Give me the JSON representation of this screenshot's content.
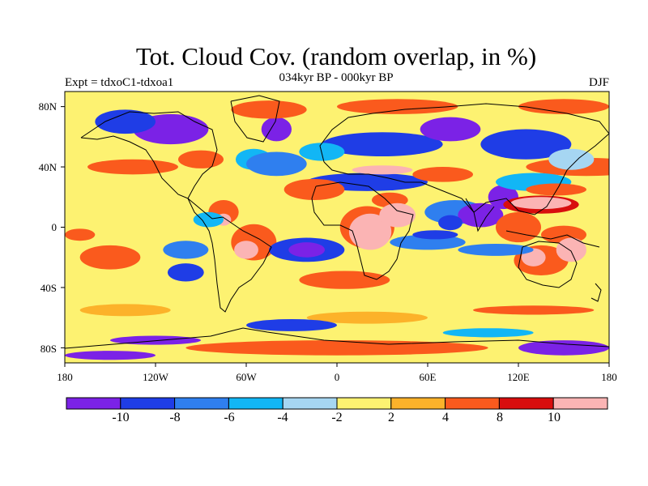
{
  "header": {
    "title": "Tot. Cloud Cov. (random overlap, in %)",
    "subtitle": "034kyr BP - 000kyr BP",
    "experiment": "Expt = tdxoC1-tdxoa1",
    "season": "DJF"
  },
  "axes": {
    "lat_labels": [
      "80N",
      "40N",
      "0",
      "40S",
      "80S"
    ],
    "lat_values": [
      80,
      40,
      0,
      -40,
      -80
    ],
    "lon_labels": [
      "180",
      "120W",
      "60W",
      "0",
      "60E",
      "120E",
      "180"
    ],
    "lon_values": [
      -180,
      -120,
      -60,
      0,
      60,
      120,
      180
    ]
  },
  "colorbar": {
    "labels": [
      "-10",
      "-8",
      "-6",
      "-4",
      "-2",
      "2",
      "4",
      "8",
      "10"
    ],
    "colors": [
      "#7b22e6",
      "#1f3de6",
      "#2f7fef",
      "#12b6f5",
      "#a6d6f2",
      "#fdf271",
      "#fcb22a",
      "#fa5a1d",
      "#d80e0e",
      "#fbb4b4"
    ]
  },
  "chart_data": {
    "type": "heatmap",
    "title": "Tot. Cloud Cov. (random overlap, in %)",
    "subtitle": "034kyr BP - 000kyr BP",
    "xlabel": "",
    "ylabel": "",
    "xlim": [
      -180,
      180
    ],
    "ylim": [
      -90,
      90
    ],
    "levels": [
      -10,
      -8,
      -6,
      -4,
      -2,
      2,
      4,
      8,
      10
    ],
    "background_class": 5,
    "regions": [
      {
        "lon": 165,
        "lat": 40,
        "rx": 40,
        "ry": 6,
        "c": 7
      },
      {
        "lon": -135,
        "lat": 40,
        "rx": 30,
        "ry": 5,
        "c": 7
      },
      {
        "lon": 125,
        "lat": 55,
        "rx": 30,
        "ry": 10,
        "c": 1
      },
      {
        "lon": 30,
        "lat": 55,
        "rx": 40,
        "ry": 8,
        "c": 1
      },
      {
        "lon": -110,
        "lat": 65,
        "rx": 25,
        "ry": 10,
        "c": 0
      },
      {
        "lon": -40,
        "lat": 65,
        "rx": 10,
        "ry": 8,
        "c": 0
      },
      {
        "lon": 75,
        "lat": 65,
        "rx": 20,
        "ry": 8,
        "c": 0
      },
      {
        "lon": 110,
        "lat": 20,
        "rx": 10,
        "ry": 8,
        "c": 0
      },
      {
        "lon": -140,
        "lat": 70,
        "rx": 20,
        "ry": 8,
        "c": 1
      },
      {
        "lon": -45,
        "lat": 78,
        "rx": 25,
        "ry": 6,
        "c": 7
      },
      {
        "lon": 40,
        "lat": 80,
        "rx": 40,
        "ry": 5,
        "c": 7
      },
      {
        "lon": 150,
        "lat": 80,
        "rx": 30,
        "ry": 5,
        "c": 7
      },
      {
        "lon": -90,
        "lat": 45,
        "rx": 15,
        "ry": 6,
        "c": 7
      },
      {
        "lon": -55,
        "lat": 45,
        "rx": 12,
        "ry": 7,
        "c": 3
      },
      {
        "lon": -10,
        "lat": 50,
        "rx": 15,
        "ry": 6,
        "c": 3
      },
      {
        "lon": -40,
        "lat": 42,
        "rx": 20,
        "ry": 8,
        "c": 2
      },
      {
        "lon": 20,
        "lat": 30,
        "rx": 40,
        "ry": 6,
        "c": 1
      },
      {
        "lon": 30,
        "lat": 38,
        "rx": 20,
        "ry": 3,
        "c": 9
      },
      {
        "lon": 70,
        "lat": 35,
        "rx": 20,
        "ry": 5,
        "c": 7
      },
      {
        "lon": -15,
        "lat": 25,
        "rx": 20,
        "ry": 7,
        "c": 7
      },
      {
        "lon": 130,
        "lat": 30,
        "rx": 25,
        "ry": 6,
        "c": 3
      },
      {
        "lon": 155,
        "lat": 45,
        "rx": 15,
        "ry": 7,
        "c": 4
      },
      {
        "lon": 145,
        "lat": 25,
        "rx": 20,
        "ry": 4,
        "c": 7
      },
      {
        "lon": 135,
        "lat": 15,
        "rx": 25,
        "ry": 6,
        "c": 8
      },
      {
        "lon": 135,
        "lat": 16,
        "rx": 20,
        "ry": 4,
        "c": 9
      },
      {
        "lon": 35,
        "lat": 18,
        "rx": 12,
        "ry": 5,
        "c": 7
      },
      {
        "lon": 20,
        "lat": 0,
        "rx": 18,
        "ry": 14,
        "c": 7
      },
      {
        "lon": 22,
        "lat": -3,
        "rx": 14,
        "ry": 12,
        "c": 9
      },
      {
        "lon": 40,
        "lat": 8,
        "rx": 12,
        "ry": 8,
        "c": 9
      },
      {
        "lon": 78,
        "lat": 10,
        "rx": 20,
        "ry": 8,
        "c": 2
      },
      {
        "lon": 95,
        "lat": 8,
        "rx": 15,
        "ry": 8,
        "c": 0
      },
      {
        "lon": 75,
        "lat": 3,
        "rx": 8,
        "ry": 5,
        "c": 1
      },
      {
        "lon": 120,
        "lat": 0,
        "rx": 15,
        "ry": 10,
        "c": 7
      },
      {
        "lon": 150,
        "lat": -5,
        "rx": 15,
        "ry": 6,
        "c": 7
      },
      {
        "lon": 135,
        "lat": -22,
        "rx": 18,
        "ry": 10,
        "c": 7
      },
      {
        "lon": 130,
        "lat": -20,
        "rx": 8,
        "ry": 6,
        "c": 9
      },
      {
        "lon": 155,
        "lat": -15,
        "rx": 10,
        "ry": 8,
        "c": 9
      },
      {
        "lon": 105,
        "lat": -15,
        "rx": 25,
        "ry": 4,
        "c": 2
      },
      {
        "lon": -75,
        "lat": 10,
        "rx": 10,
        "ry": 8,
        "c": 7
      },
      {
        "lon": -75,
        "lat": 5,
        "rx": 5,
        "ry": 4,
        "c": 9
      },
      {
        "lon": -55,
        "lat": -10,
        "rx": 15,
        "ry": 12,
        "c": 7
      },
      {
        "lon": -60,
        "lat": -15,
        "rx": 8,
        "ry": 6,
        "c": 9
      },
      {
        "lon": -85,
        "lat": 5,
        "rx": 10,
        "ry": 5,
        "c": 3
      },
      {
        "lon": -100,
        "lat": -15,
        "rx": 15,
        "ry": 6,
        "c": 2
      },
      {
        "lon": -100,
        "lat": -30,
        "rx": 12,
        "ry": 6,
        "c": 1
      },
      {
        "lon": -20,
        "lat": -15,
        "rx": 25,
        "ry": 8,
        "c": 1
      },
      {
        "lon": -20,
        "lat": -15,
        "rx": 12,
        "ry": 5,
        "c": 0
      },
      {
        "lon": 60,
        "lat": -10,
        "rx": 25,
        "ry": 5,
        "c": 2
      },
      {
        "lon": 65,
        "lat": -5,
        "rx": 15,
        "ry": 3,
        "c": 1
      },
      {
        "lon": -150,
        "lat": -20,
        "rx": 20,
        "ry": 8,
        "c": 7
      },
      {
        "lon": -170,
        "lat": -5,
        "rx": 10,
        "ry": 4,
        "c": 7
      },
      {
        "lon": 5,
        "lat": -35,
        "rx": 30,
        "ry": 6,
        "c": 7
      },
      {
        "lon": -140,
        "lat": -55,
        "rx": 30,
        "ry": 4,
        "c": 6
      },
      {
        "lon": 20,
        "lat": -60,
        "rx": 40,
        "ry": 4,
        "c": 6
      },
      {
        "lon": 130,
        "lat": -55,
        "rx": 40,
        "ry": 3,
        "c": 7
      },
      {
        "lon": -30,
        "lat": -65,
        "rx": 30,
        "ry": 4,
        "c": 1
      },
      {
        "lon": 100,
        "lat": -70,
        "rx": 30,
        "ry": 3,
        "c": 3
      },
      {
        "lon": -120,
        "lat": -75,
        "rx": 30,
        "ry": 3,
        "c": 0
      },
      {
        "lon": 0,
        "lat": -80,
        "rx": 100,
        "ry": 5,
        "c": 7
      },
      {
        "lon": 150,
        "lat": -80,
        "rx": 30,
        "ry": 5,
        "c": 0
      },
      {
        "lon": -150,
        "lat": -85,
        "rx": 30,
        "ry": 3,
        "c": 0
      }
    ]
  }
}
